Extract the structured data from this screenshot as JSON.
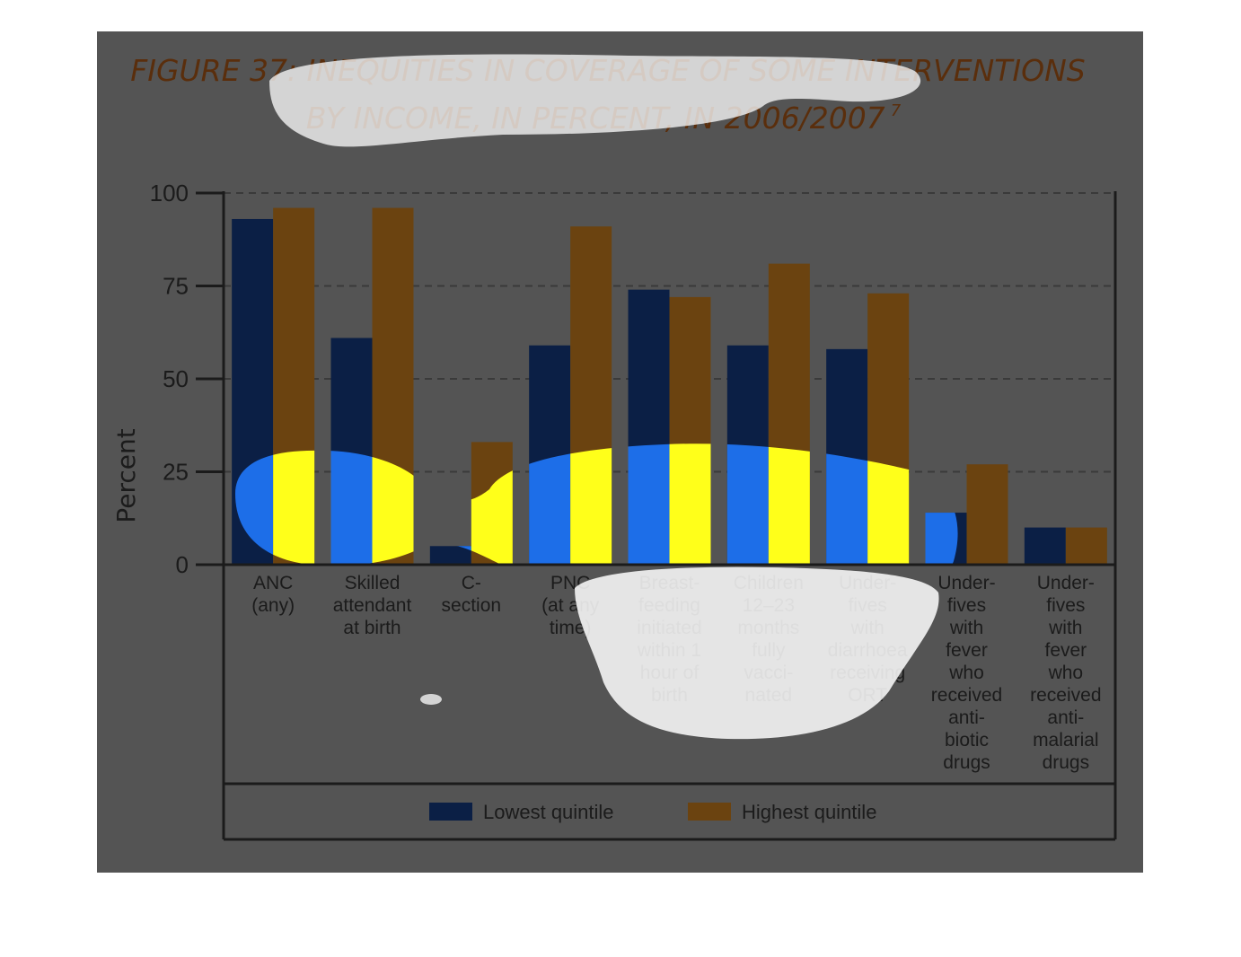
{
  "title_lines": [
    "FIGURE 37: INEQUITIES IN COVERAGE OF SOME INTERVENTIONS",
    "BY INCOME, IN PERCENT, IN 2006/2007"
  ],
  "title_superscript": "7",
  "colors": {
    "background": "#545454",
    "lowest": "#0b1f45",
    "highest": "#6b4310",
    "lowest_highlight": "#1d6ee8",
    "highest_highlight": "#ffff1a",
    "title": "#5a2e0c"
  },
  "chart_data": {
    "type": "bar",
    "ylabel": "Percent",
    "ylim": [
      0,
      100
    ],
    "yticks": [
      0,
      25,
      50,
      75,
      100
    ],
    "grid": "dashed horizontal",
    "legend_position": "bottom",
    "categories": [
      [
        "ANC",
        "(any)"
      ],
      [
        "Skilled",
        "attendant",
        "at birth"
      ],
      [
        "C-",
        "section"
      ],
      [
        "PNC",
        "(at any",
        "time)"
      ],
      [
        "Breast-",
        "feeding",
        "initiated",
        "within 1",
        "hour of",
        "birth"
      ],
      [
        "Children",
        "12–23",
        "months",
        "fully",
        "vacci-",
        "nated"
      ],
      [
        "Under-",
        "fives",
        "with",
        "diarrhoea",
        "receiving",
        "ORT"
      ],
      [
        "Under-",
        "fives",
        "with",
        "fever",
        "who",
        "received",
        "anti-",
        "biotic",
        "drugs"
      ],
      [
        "Under-",
        "fives",
        "with",
        "fever",
        "who",
        "received",
        "anti-",
        "malarial",
        "drugs"
      ]
    ],
    "series": [
      {
        "name": "Lowest quintile",
        "values": [
          93,
          61,
          5,
          59,
          74,
          59,
          58,
          14,
          10
        ]
      },
      {
        "name": "Highest quintile",
        "values": [
          96,
          96,
          33,
          91,
          72,
          81,
          73,
          27,
          10
        ]
      }
    ]
  }
}
